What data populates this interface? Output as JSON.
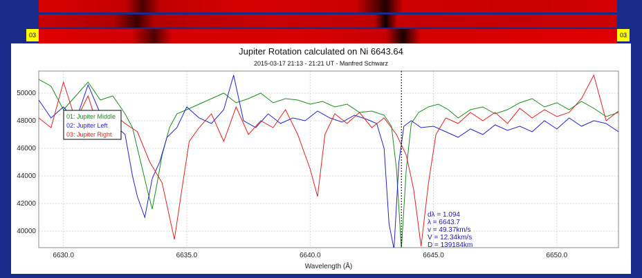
{
  "spectra": {
    "left_label": "03",
    "right_label": "03"
  },
  "chart_data": {
    "type": "line",
    "title": "Jupiter Rotation calculated on Ni 6643.64",
    "subtitle": "2015-03-17 21:13 - 21:21 UT - Manfred Schwarz",
    "xlabel": "Wavelength (Å)",
    "ylabel": "",
    "xlim": [
      6629.0,
      6652.5
    ],
    "ylim": [
      38800,
      51600
    ],
    "xticks": [
      6630.0,
      6635.0,
      6640.0,
      6645.0,
      6650.0
    ],
    "xtick_labels": [
      "6630.0",
      "6635.0",
      "6640.0",
      "6645.0",
      "6650.0"
    ],
    "yticks": [
      40000,
      42000,
      44000,
      46000,
      48000,
      50000
    ],
    "ytick_labels": [
      "40000",
      "42000",
      "44000",
      "46000",
      "48000",
      "50000"
    ],
    "grid": true,
    "legend_position": "left",
    "marker_line_x": 6643.7,
    "series": [
      {
        "name": "01: Jupiter Middle",
        "color": "#1a8a1a",
        "x": [
          6629.0,
          6629.5,
          6630.0,
          6630.5,
          6631.0,
          6631.5,
          6632.0,
          6632.5,
          6632.8,
          6633.0,
          6633.2,
          6633.4,
          6633.6,
          6633.8,
          6634.0,
          6634.3,
          6634.6,
          6635.0,
          6635.5,
          6636.0,
          6636.5,
          6637.0,
          6637.5,
          6638.0,
          6638.5,
          6639.0,
          6639.5,
          6640.0,
          6640.5,
          6641.0,
          6641.5,
          6642.0,
          6642.5,
          6643.0,
          6643.3,
          6643.5,
          6643.7,
          6643.9,
          6644.1,
          6644.4,
          6644.8,
          6645.2,
          6645.6,
          6646.0,
          6646.5,
          6647.0,
          6647.5,
          6648.0,
          6648.5,
          6649.0,
          6649.5,
          6650.0,
          6650.5,
          6651.0,
          6651.5,
          6652.0,
          6652.5
        ],
        "y": [
          51000,
          50500,
          48800,
          49800,
          50800,
          49500,
          49800,
          48500,
          47500,
          46000,
          44500,
          43000,
          41600,
          43500,
          45500,
          47500,
          48500,
          48800,
          49200,
          49600,
          50000,
          49300,
          49600,
          50000,
          49300,
          49600,
          49500,
          49200,
          49400,
          49000,
          49200,
          48600,
          48700,
          48400,
          47600,
          44500,
          38700,
          44500,
          47800,
          48600,
          49000,
          49200,
          48800,
          48200,
          48800,
          49000,
          48500,
          48800,
          49300,
          49600,
          49000,
          49300,
          48800,
          49400,
          48900,
          48300,
          48600
        ]
      },
      {
        "name": "02: Jupiter Left",
        "color": "#2222cc",
        "x": [
          6629.0,
          6629.5,
          6630.0,
          6630.5,
          6631.0,
          6631.5,
          6632.0,
          6632.5,
          6632.8,
          6633.0,
          6633.3,
          6633.6,
          6633.9,
          6634.2,
          6634.6,
          6635.0,
          6635.5,
          6636.0,
          6636.5,
          6636.9,
          6637.3,
          6637.8,
          6638.3,
          6638.8,
          6639.3,
          6639.8,
          6640.3,
          6640.8,
          6641.3,
          6641.8,
          6642.3,
          6642.7,
          6643.0,
          6643.2,
          6643.4,
          6643.6,
          6643.8,
          6644.1,
          6644.5,
          6645.0,
          6645.5,
          6646.0,
          6646.5,
          6647.0,
          6647.5,
          6648.0,
          6648.5,
          6649.0,
          6649.5,
          6650.0,
          6650.5,
          6651.0,
          6651.5,
          6652.0,
          6652.5
        ],
        "y": [
          49500,
          48200,
          49000,
          48000,
          50600,
          48500,
          47800,
          47000,
          44000,
          42500,
          41000,
          43800,
          45000,
          46800,
          47500,
          49000,
          48200,
          47800,
          48800,
          51300,
          48000,
          47500,
          48500,
          47800,
          48200,
          48000,
          48700,
          48200,
          47900,
          48400,
          48100,
          47800,
          46000,
          40500,
          38700,
          45000,
          47600,
          48000,
          47500,
          47600,
          47200,
          46800,
          47400,
          47000,
          47700,
          47300,
          47600,
          47200,
          48000,
          47400,
          48200,
          47600,
          48000,
          47800,
          47200
        ]
      },
      {
        "name": "03: Jupiter Right",
        "color": "#dd2222",
        "x": [
          6629.0,
          6629.5,
          6630.0,
          6630.5,
          6631.0,
          6631.5,
          6632.0,
          6632.5,
          6633.0,
          6633.5,
          6634.0,
          6634.5,
          6634.8,
          6635.1,
          6635.5,
          6636.0,
          6636.5,
          6637.0,
          6637.5,
          6638.0,
          6638.5,
          6639.0,
          6639.5,
          6640.0,
          6640.3,
          6640.6,
          6641.0,
          6641.5,
          6642.0,
          6642.5,
          6643.0,
          6643.5,
          6643.9,
          6644.2,
          6644.5,
          6644.8,
          6645.1,
          6645.5,
          6646.0,
          6646.5,
          6647.0,
          6647.5,
          6648.0,
          6648.5,
          6649.0,
          6649.5,
          6650.0,
          6650.5,
          6651.0,
          6651.5,
          6652.0,
          6652.5
        ],
        "y": [
          48200,
          47500,
          50800,
          48000,
          49800,
          47000,
          48500,
          47800,
          47200,
          45000,
          43500,
          39400,
          43000,
          46500,
          47500,
          48500,
          46500,
          49000,
          47000,
          48000,
          47500,
          48800,
          47000,
          44500,
          42500,
          47000,
          48500,
          47800,
          48600,
          47500,
          48200,
          47000,
          45500,
          43000,
          38900,
          43500,
          47000,
          48200,
          47800,
          48600,
          48000,
          48600,
          47800,
          48900,
          48200,
          48800,
          48300,
          48600,
          49600,
          51300,
          48000,
          48700
        ]
      }
    ],
    "annotation": [
      "dλ = 1.094",
      "λ = 6643.7",
      "v = 49.37km/s",
      "V = 12.34km/s",
      "D = 139184km"
    ]
  }
}
